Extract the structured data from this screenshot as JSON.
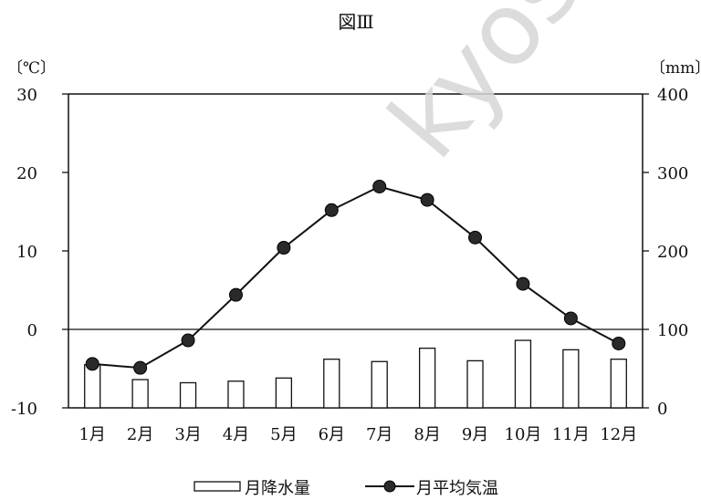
{
  "watermark": "kyosei",
  "chart_data": {
    "type": "bar+line",
    "title": "図Ⅲ",
    "categories": [
      "1月",
      "2月",
      "3月",
      "4月",
      "5月",
      "6月",
      "7月",
      "8月",
      "9月",
      "10月",
      "11月",
      "12月"
    ],
    "left_axis": {
      "unit_label": "〔℃〕",
      "ylim": [
        -10,
        30
      ],
      "ticks": [
        -10,
        0,
        10,
        20,
        30
      ]
    },
    "right_axis": {
      "unit_label": "〔mm〕",
      "ylim": [
        0,
        400
      ],
      "ticks": [
        0,
        100,
        200,
        300,
        400
      ]
    },
    "series": [
      {
        "name": "月降水量",
        "kind": "bar",
        "axis": "right",
        "values": [
          55,
          36,
          32,
          34,
          38,
          62,
          59,
          76,
          60,
          86,
          74,
          62
        ]
      },
      {
        "name": "月平均気温",
        "kind": "line",
        "axis": "left",
        "values": [
          -4.4,
          -4.9,
          -1.4,
          4.4,
          10.4,
          15.2,
          18.2,
          16.5,
          11.7,
          5.8,
          1.4,
          -1.8
        ]
      }
    ],
    "grid": false,
    "reference_line": 0,
    "legend_position": "bottom-center"
  }
}
